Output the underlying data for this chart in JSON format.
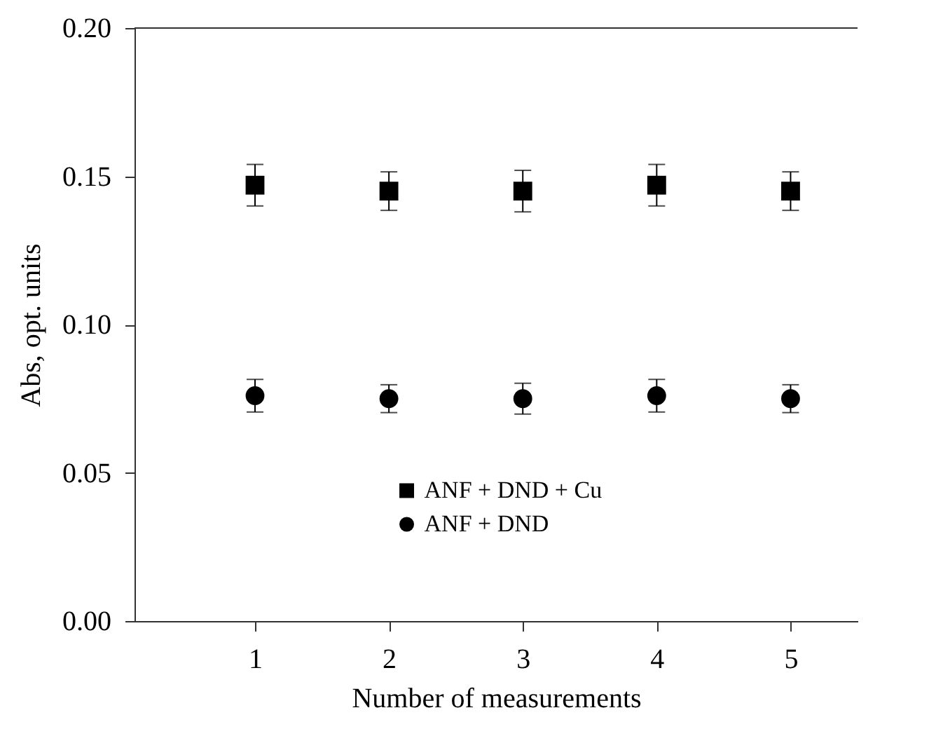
{
  "chart_data": {
    "type": "scatter",
    "xlabel": "Number of measurements",
    "ylabel": "Abs, opt. units",
    "x": [
      1,
      2,
      3,
      4,
      5
    ],
    "series": [
      {
        "name": "ANF + DND + Cu",
        "color": "#000000",
        "marker": "square",
        "values": [
          0.147,
          0.145,
          0.145,
          0.147,
          0.145
        ],
        "errors": [
          0.007,
          0.0065,
          0.007,
          0.007,
          0.0065
        ]
      },
      {
        "name": "ANF + DND",
        "color": "#000000",
        "marker": "circle",
        "values": [
          0.076,
          0.075,
          0.075,
          0.076,
          0.075
        ],
        "errors": [
          0.0055,
          0.0047,
          0.0052,
          0.0055,
          0.0047
        ]
      }
    ],
    "xlim": [
      0.1,
      5.5
    ],
    "xticks": [
      1,
      2,
      3,
      4,
      5
    ],
    "ylim": [
      0,
      0.2
    ],
    "yticks": [
      {
        "value": 0,
        "label": "0.00"
      },
      {
        "value": 0.05,
        "label": "0.05"
      },
      {
        "value": 0.1,
        "label": "0.10"
      },
      {
        "value": 0.15,
        "label": "0.15"
      },
      {
        "value": 0.2,
        "label": "0.20"
      }
    ],
    "grid": false,
    "legend": "bottom"
  }
}
